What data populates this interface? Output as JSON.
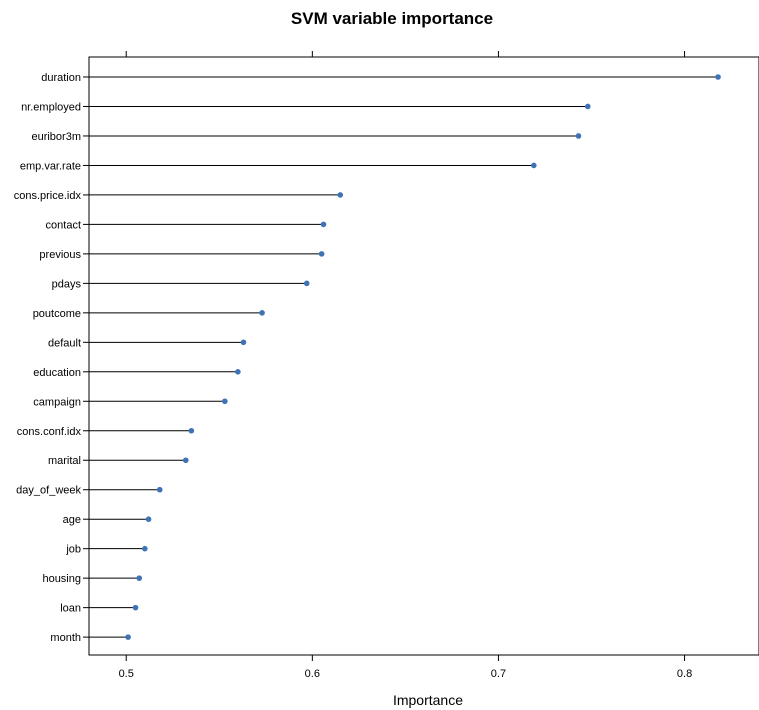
{
  "chart_data": {
    "type": "dotplot",
    "title": "SVM variable importance",
    "xlabel": "Importance",
    "ylabel": "",
    "xlim": [
      0.48,
      0.84
    ],
    "xticks": [
      0.5,
      0.6,
      0.7,
      0.8
    ],
    "categories": [
      "duration",
      "nr.employed",
      "euribor3m",
      "emp.var.rate",
      "cons.price.idx",
      "contact",
      "previous",
      "pdays",
      "poutcome",
      "default",
      "education",
      "campaign",
      "cons.conf.idx",
      "marital",
      "day_of_week",
      "age",
      "job",
      "housing",
      "loan",
      "month"
    ],
    "values": [
      0.818,
      0.748,
      0.743,
      0.719,
      0.615,
      0.606,
      0.605,
      0.597,
      0.573,
      0.563,
      0.56,
      0.553,
      0.535,
      0.532,
      0.518,
      0.512,
      0.51,
      0.507,
      0.505,
      0.501
    ],
    "point_color": "#3f73b6",
    "grid": false,
    "legend": "none"
  }
}
